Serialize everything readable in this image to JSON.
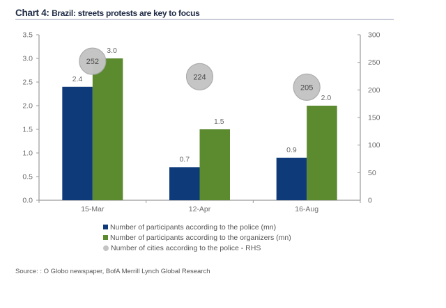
{
  "header": {
    "chart_number": "Chart 4:",
    "title": "Brazil: streets protests are key to focus"
  },
  "source": "Source: :  O Globo newspaper, BofA Merrill Lynch Global Research",
  "colors": {
    "police": "#0e3a7a",
    "organizers": "#5b8a2f",
    "cities": "#c4c4c4",
    "cities_border": "#aaaaaa",
    "axis": "#9a9a9a"
  },
  "chart_data": {
    "type": "bar",
    "title": "Brazil: streets protests are key to focus",
    "categories": [
      "15-Mar",
      "12-Apr",
      "16-Aug"
    ],
    "series": [
      {
        "name": "Number of participants according to the police (mn)",
        "axis": "left",
        "kind": "bar",
        "values": [
          2.4,
          0.7,
          0.9
        ],
        "labels": [
          "2.4",
          "0.7",
          "0.9"
        ]
      },
      {
        "name": "Number of participants according to the organizers (mn)",
        "axis": "left",
        "kind": "bar",
        "values": [
          3.0,
          1.5,
          2.0
        ],
        "labels": [
          "3.0",
          "1.5",
          "2.0"
        ]
      },
      {
        "name": "Number of cities according to the police - RHS",
        "axis": "right",
        "kind": "bubble",
        "values": [
          252,
          224,
          205
        ],
        "labels": [
          "252",
          "224",
          "205"
        ]
      }
    ],
    "y_left": {
      "min": 0,
      "max": 3.5,
      "ticks": [
        "0.0",
        "0.5",
        "1.0",
        "1.5",
        "2.0",
        "2.5",
        "3.0",
        "3.5"
      ],
      "tick_values": [
        0,
        0.5,
        1.0,
        1.5,
        2.0,
        2.5,
        3.0,
        3.5
      ]
    },
    "y_right": {
      "min": 0,
      "max": 300,
      "ticks": [
        "0",
        "50",
        "100",
        "150",
        "200",
        "250",
        "300"
      ],
      "tick_values": [
        0,
        50,
        100,
        150,
        200,
        250,
        300
      ]
    },
    "xlabel": "",
    "ylabel": "",
    "grid": false,
    "legend_position": "bottom"
  }
}
